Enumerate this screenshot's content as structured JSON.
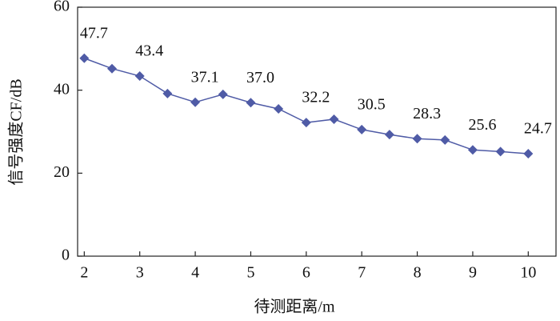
{
  "chart_data": {
    "type": "line",
    "x_label": "待测距离/m",
    "y_label": "信号强度CF/dB",
    "x": [
      2,
      2.5,
      3,
      3.5,
      4,
      4.5,
      5,
      5.5,
      6,
      6.5,
      7,
      7.5,
      8,
      8.5,
      9,
      9.5,
      10
    ],
    "values": [
      47.7,
      45.2,
      43.4,
      39.2,
      37.1,
      39.0,
      37.0,
      35.5,
      32.2,
      33.0,
      30.5,
      29.3,
      28.3,
      28.0,
      25.6,
      25.2,
      24.7
    ],
    "value_labels": [
      "47.7",
      null,
      "43.4",
      null,
      "37.1",
      null,
      "37.0",
      null,
      "32.2",
      null,
      "30.5",
      null,
      "28.3",
      null,
      "25.6",
      null,
      "24.7"
    ],
    "color": "#4f5ba6",
    "xlim": [
      1.88,
      10.5
    ],
    "xticks": [
      2,
      3,
      4,
      5,
      6,
      7,
      8,
      9,
      10
    ],
    "ylim": [
      0,
      60
    ],
    "yticks": [
      0,
      20,
      40,
      60
    ]
  }
}
